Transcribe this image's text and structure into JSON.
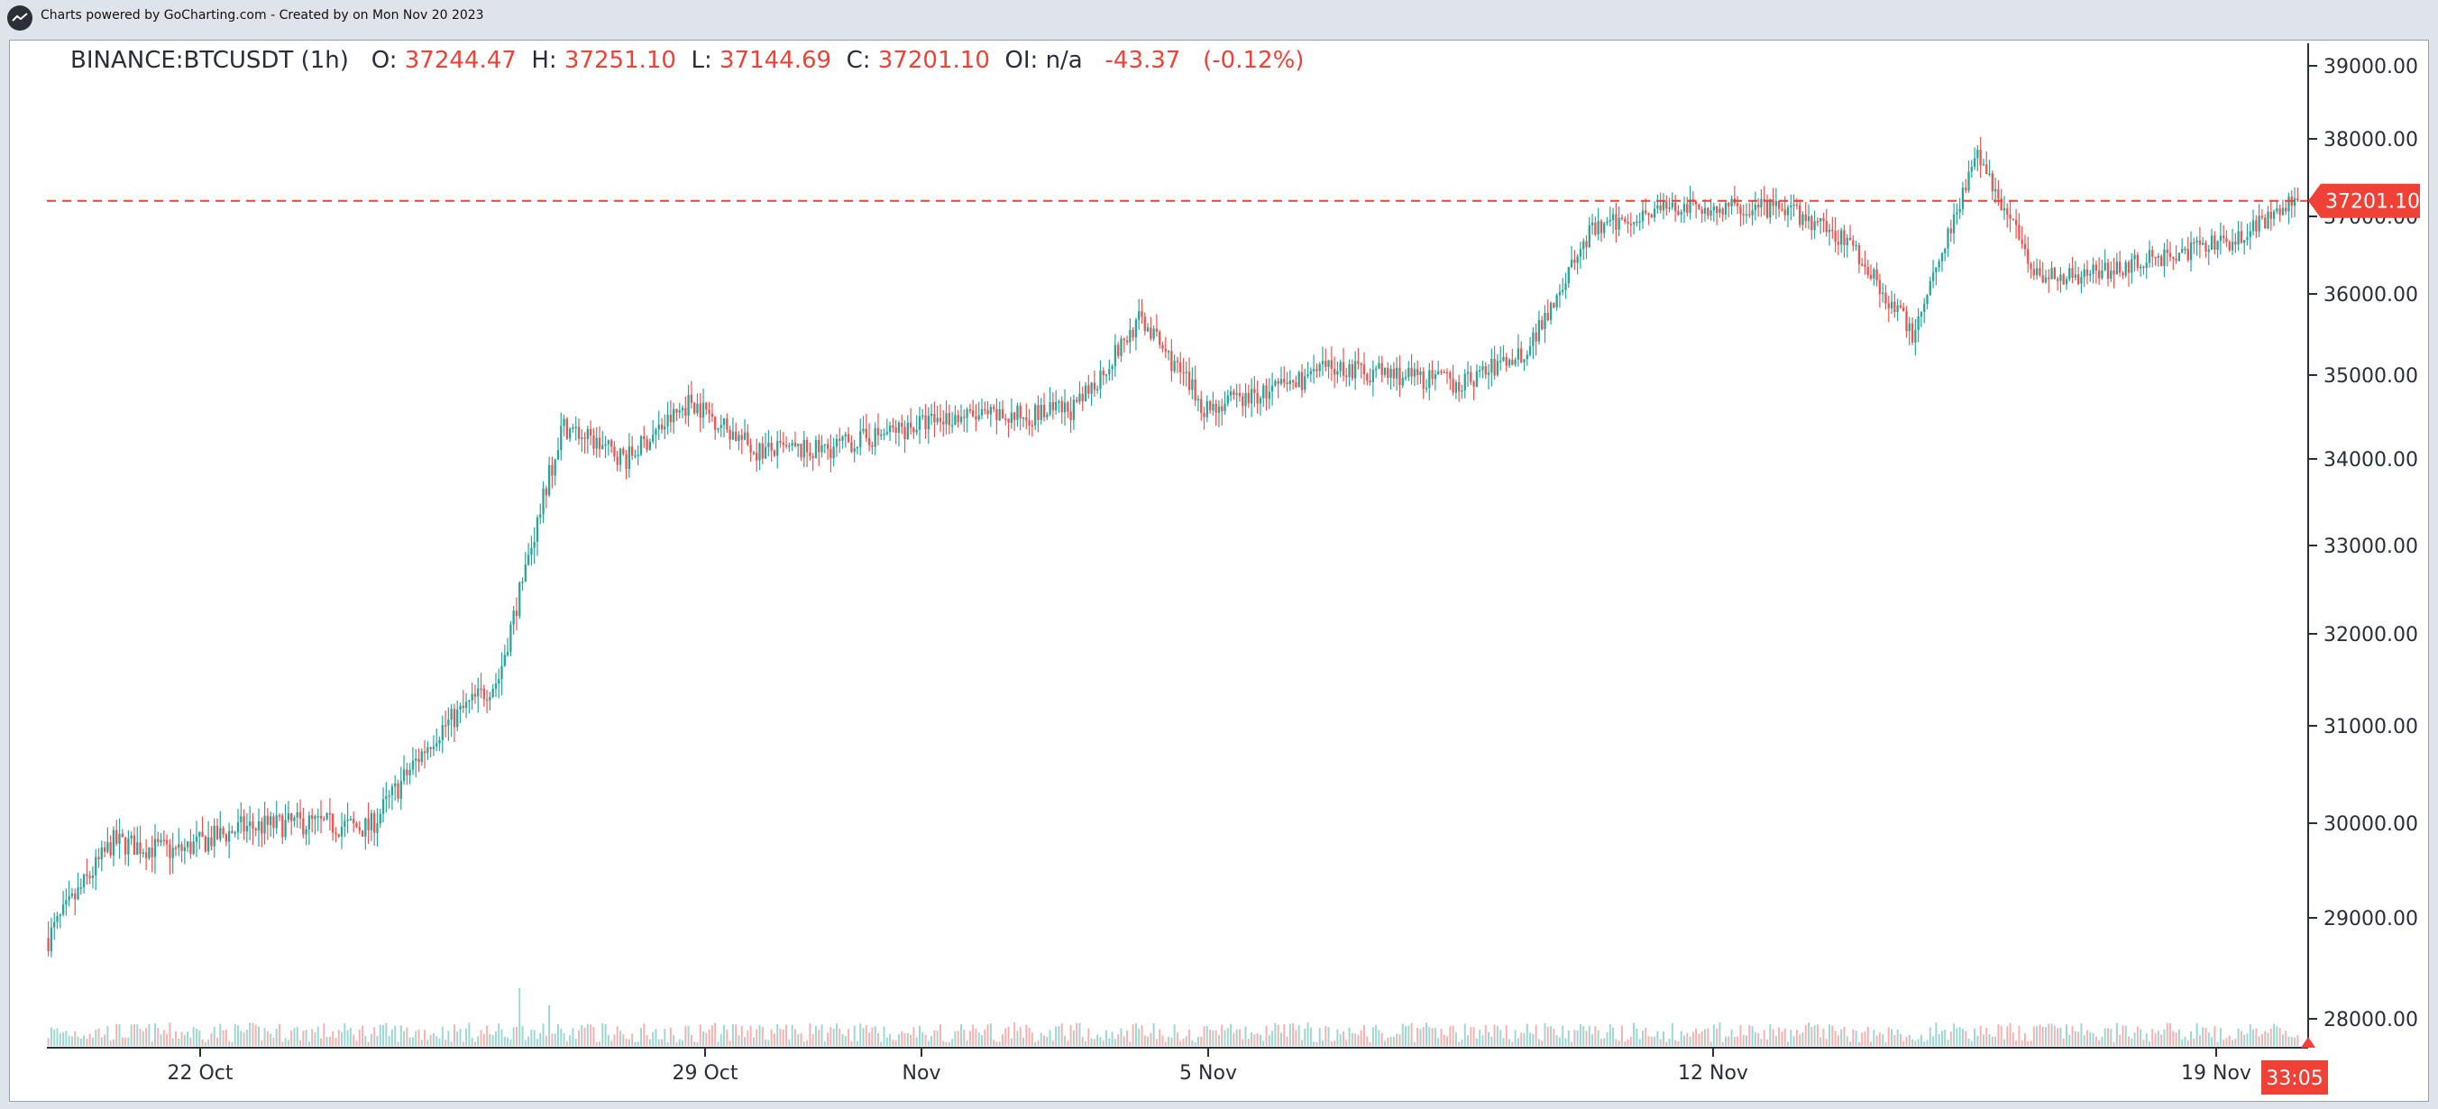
{
  "header": {
    "credit_text": "Charts powered by GoCharting.com - Created by  on Mon Nov 20 2023"
  },
  "legend": {
    "symbol": "BINANCE:BTCUSDT (1h)",
    "open_label": "O:",
    "open": "37244.47",
    "high_label": "H:",
    "high": "37251.10",
    "low_label": "L:",
    "low": "37144.69",
    "close_label": "C:",
    "close": "37201.10",
    "oi_label": "OI:",
    "oi": "n/a",
    "change": "-43.37",
    "change_pct": "(-0.12%)"
  },
  "price_marker": {
    "value": "37201.10"
  },
  "countdown": {
    "value": "33:05"
  },
  "colors": {
    "up": "#26a69a",
    "down": "#ef5350",
    "marker": "#ef4136",
    "text": "#2a2e39"
  },
  "chart_data": {
    "type": "candlestick",
    "interval": "1h",
    "y_ticks": [
      "39000.00",
      "38000.00",
      "37000.00",
      "36000.00",
      "35000.00",
      "34000.00",
      "33000.00",
      "32000.00",
      "31000.00",
      "30000.00",
      "29000.00",
      "28000.00"
    ],
    "x_ticks": [
      "22 Oct",
      "29 Oct",
      "Nov",
      "5 Nov",
      "12 Nov",
      "19 Nov"
    ],
    "last_price": 37201.1,
    "approx_close_path": [
      {
        "date": "2023-10-20",
        "close": 28800
      },
      {
        "date": "2023-10-20",
        "close": 29800
      },
      {
        "date": "2023-10-21",
        "close": 29700
      },
      {
        "date": "2023-10-22",
        "close": 29950
      },
      {
        "date": "2023-10-22",
        "close": 30000
      },
      {
        "date": "2023-10-23",
        "close": 29950
      },
      {
        "date": "2023-10-23",
        "close": 30900
      },
      {
        "date": "2023-10-24",
        "close": 31500
      },
      {
        "date": "2023-10-24",
        "close": 34400
      },
      {
        "date": "2023-10-25",
        "close": 34000
      },
      {
        "date": "2023-10-26",
        "close": 34700
      },
      {
        "date": "2023-10-27",
        "close": 34100
      },
      {
        "date": "2023-10-28",
        "close": 34100
      },
      {
        "date": "2023-10-29",
        "close": 34300
      },
      {
        "date": "2023-10-30",
        "close": 34500
      },
      {
        "date": "2023-10-31",
        "close": 34500
      },
      {
        "date": "2023-11-01",
        "close": 34600
      },
      {
        "date": "2023-11-02",
        "close": 35700
      },
      {
        "date": "2023-11-03",
        "close": 34600
      },
      {
        "date": "2023-11-04",
        "close": 34800
      },
      {
        "date": "2023-11-05",
        "close": 35100
      },
      {
        "date": "2023-11-06",
        "close": 35000
      },
      {
        "date": "2023-11-07",
        "close": 34900
      },
      {
        "date": "2023-11-08",
        "close": 35300
      },
      {
        "date": "2023-11-09",
        "close": 36800
      },
      {
        "date": "2023-11-10",
        "close": 37100
      },
      {
        "date": "2023-11-11",
        "close": 37100
      },
      {
        "date": "2023-11-12",
        "close": 37100
      },
      {
        "date": "2023-11-13",
        "close": 36700
      },
      {
        "date": "2023-11-14",
        "close": 35500
      },
      {
        "date": "2023-11-15",
        "close": 37800
      },
      {
        "date": "2023-11-16",
        "close": 36200
      },
      {
        "date": "2023-11-17",
        "close": 36300
      },
      {
        "date": "2023-11-18",
        "close": 36500
      },
      {
        "date": "2023-11-19",
        "close": 36700
      },
      {
        "date": "2023-11-20",
        "close": 37201
      }
    ]
  }
}
